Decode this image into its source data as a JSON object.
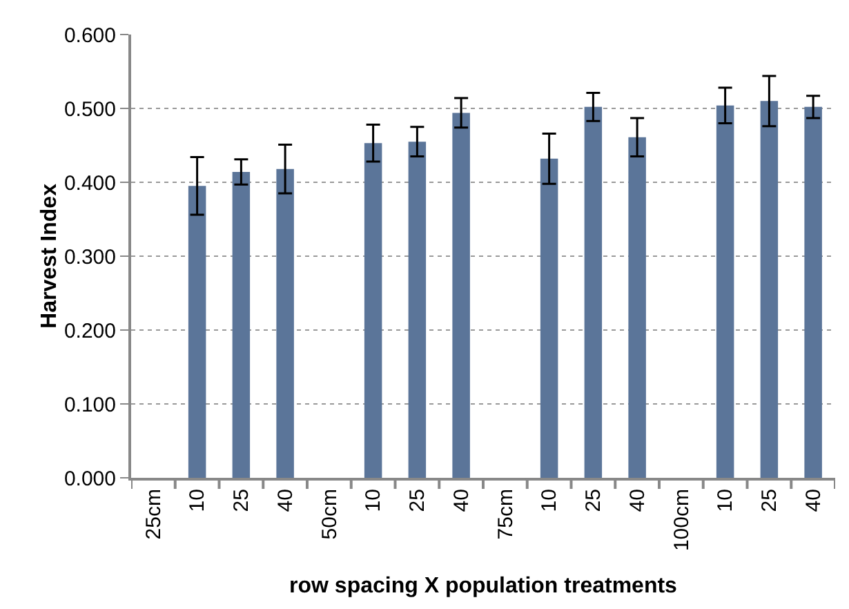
{
  "chart_data": {
    "type": "bar",
    "xlabel": "row spacing X population treatments",
    "ylabel": "Harvest Index",
    "categories": [
      "25cm",
      "10",
      "25",
      "40",
      "50cm",
      "10",
      "25",
      "40",
      "75cm",
      "10",
      "25",
      "40",
      "100cm",
      "10",
      "25",
      "40"
    ],
    "values": [
      null,
      0.395,
      0.414,
      0.418,
      null,
      0.453,
      0.455,
      0.494,
      null,
      0.432,
      0.502,
      0.461,
      null,
      0.504,
      0.51,
      0.502
    ],
    "errors": [
      null,
      0.039,
      0.017,
      0.033,
      null,
      0.025,
      0.02,
      0.02,
      null,
      0.034,
      0.019,
      0.026,
      null,
      0.024,
      0.034,
      0.015
    ],
    "color": "#5b7599",
    "ylim": [
      0,
      0.6
    ],
    "yticks": [
      {
        "value": 0,
        "label": "0.000"
      },
      {
        "value": 0.1,
        "label": "0.100"
      },
      {
        "value": 0.2,
        "label": "0.200"
      },
      {
        "value": 0.3,
        "label": "0.300"
      },
      {
        "value": 0.4,
        "label": "0.400"
      },
      {
        "value": 0.5,
        "label": "0.500"
      },
      {
        "value": 0.6,
        "label": "0.600"
      }
    ],
    "grid": "y"
  }
}
